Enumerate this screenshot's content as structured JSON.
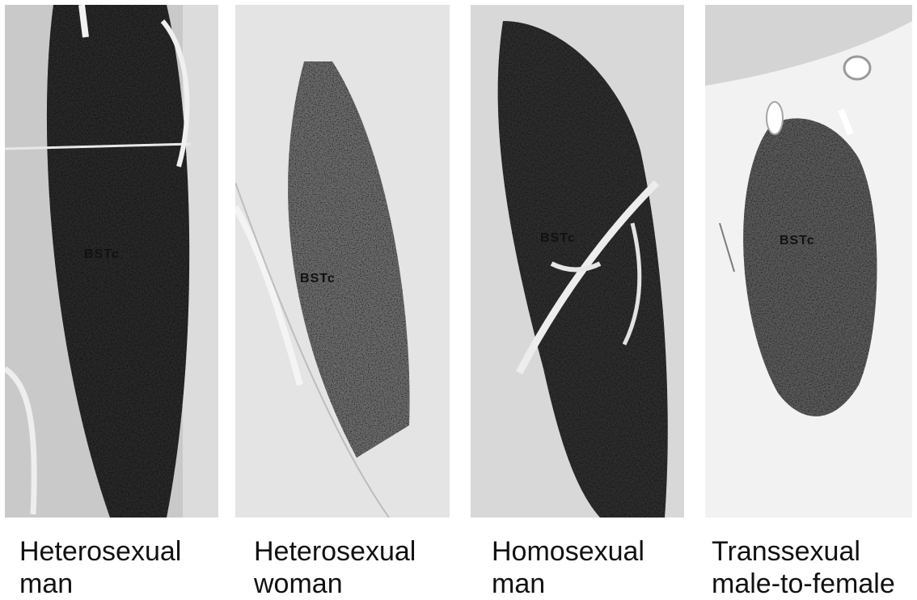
{
  "panels": [
    {
      "region_label": "BSTc",
      "caption_line1": "Heterosexual",
      "caption_line2": "man"
    },
    {
      "region_label": "BSTc",
      "caption_line1": "Heterosexual",
      "caption_line2": "woman"
    },
    {
      "region_label": "BSTc",
      "caption_line1": "Homosexual",
      "caption_line2": "man"
    },
    {
      "region_label": "BSTc",
      "caption_line1": "Transsexual",
      "caption_line2": "male-to-female"
    }
  ]
}
